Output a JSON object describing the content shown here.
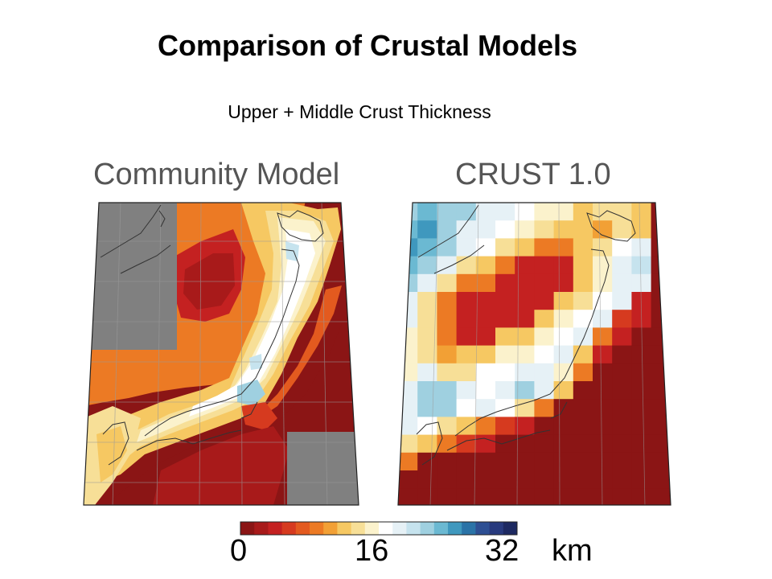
{
  "title": "Comparison of Crustal Models",
  "subtitle": "Upper + Middle Crust Thickness",
  "panels": [
    {
      "title": "Community Model"
    },
    {
      "title": "CRUST 1.0"
    }
  ],
  "colorbar": {
    "min_label": "0",
    "mid_label": "16",
    "max_label": "32",
    "unit": "km",
    "colors": [
      "#8b1515",
      "#a81a1a",
      "#c42121",
      "#d63a1f",
      "#e35a1f",
      "#ec7a24",
      "#f2a035",
      "#f6c862",
      "#f7df97",
      "#fbf2cc",
      "#ffffff",
      "#e6f1f6",
      "#c6e3ee",
      "#9fd0e0",
      "#6bb9d2",
      "#3f98be",
      "#2a73a7",
      "#2d4f93",
      "#283a7e",
      "#1d2961"
    ]
  },
  "colors": {
    "no_data": "#808080",
    "coastline": "#333333",
    "grid": "#9a9a9a"
  }
}
